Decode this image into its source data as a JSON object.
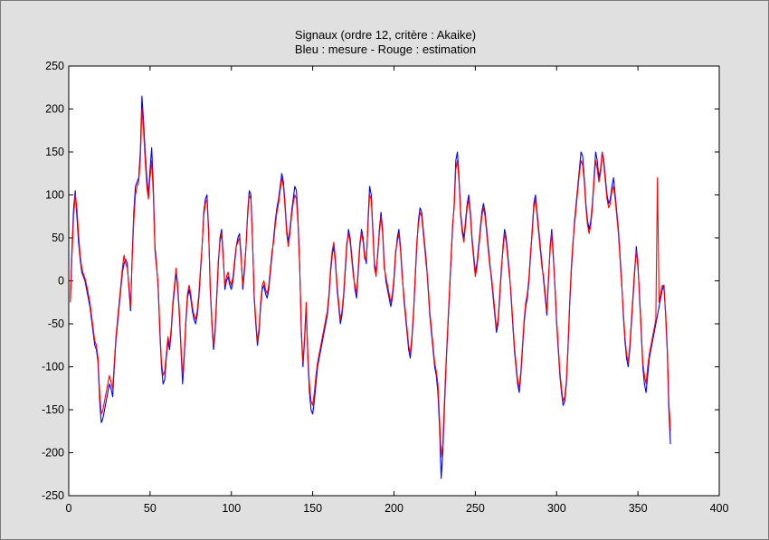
{
  "window": {
    "background": "#e0e0e0"
  },
  "chart_data": {
    "type": "line",
    "title": "Signaux (ordre 12, critère : Akaike)",
    "subtitle": "Bleu : mesure - Rouge : estimation",
    "xlabel": "",
    "ylabel": "",
    "xlim": [
      0,
      400
    ],
    "ylim": [
      -250,
      250
    ],
    "xticks": [
      0,
      50,
      100,
      150,
      200,
      250,
      300,
      350,
      400
    ],
    "yticks": [
      250,
      200,
      150,
      100,
      50,
      0,
      -50,
      -100,
      -150,
      -200,
      -250
    ],
    "grid": false,
    "background": "#ffffff",
    "series": [
      {
        "color": "#0000ff",
        "x_start": 1,
        "x_step": 1,
        "values": [
          -20,
          40,
          85,
          105,
          75,
          45,
          25,
          10,
          5,
          0,
          -10,
          -20,
          -30,
          -45,
          -60,
          -75,
          -80,
          -95,
          -140,
          -165,
          -160,
          -150,
          -140,
          -130,
          -120,
          -125,
          -135,
          -100,
          -70,
          -50,
          -30,
          -10,
          10,
          20,
          25,
          20,
          -10,
          -35,
          30,
          80,
          110,
          115,
          120,
          150,
          215,
          185,
          150,
          120,
          100,
          130,
          155,
          110,
          40,
          20,
          -10,
          -60,
          -100,
          -120,
          -115,
          -90,
          -70,
          -80,
          -60,
          -30,
          -10,
          10,
          -10,
          -40,
          -80,
          -120,
          -90,
          -50,
          -20,
          -10,
          -20,
          -35,
          -45,
          -50,
          -40,
          -20,
          10,
          40,
          80,
          95,
          100,
          60,
          -10,
          -50,
          -80,
          -60,
          -20,
          20,
          50,
          60,
          30,
          -10,
          0,
          5,
          -5,
          -10,
          0,
          20,
          40,
          50,
          55,
          30,
          -10,
          10,
          40,
          80,
          105,
          100,
          50,
          -20,
          -50,
          -75,
          -60,
          -30,
          -10,
          -5,
          -15,
          -20,
          -10,
          10,
          30,
          50,
          70,
          85,
          95,
          110,
          125,
          115,
          90,
          60,
          45,
          60,
          80,
          95,
          110,
          105,
          70,
          20,
          -60,
          -100,
          -70,
          -30,
          -90,
          -130,
          -150,
          -155,
          -140,
          -120,
          -100,
          -90,
          -80,
          -70,
          -60,
          -50,
          -40,
          -20,
          10,
          30,
          40,
          20,
          -10,
          -30,
          -50,
          -40,
          -20,
          10,
          40,
          60,
          50,
          30,
          10,
          -10,
          -20,
          10,
          40,
          60,
          50,
          30,
          20,
          70,
          110,
          100,
          60,
          20,
          10,
          30,
          60,
          80,
          60,
          20,
          0,
          -10,
          -20,
          -30,
          -20,
          0,
          30,
          50,
          60,
          40,
          10,
          -20,
          -40,
          -60,
          -80,
          -90,
          -70,
          -40,
          0,
          40,
          70,
          85,
          80,
          60,
          40,
          20,
          -10,
          -40,
          -60,
          -80,
          -100,
          -110,
          -130,
          -170,
          -230,
          -200,
          -150,
          -100,
          -60,
          -20,
          20,
          60,
          90,
          140,
          150,
          120,
          80,
          60,
          50,
          70,
          90,
          100,
          80,
          50,
          30,
          10,
          20,
          40,
          60,
          80,
          90,
          80,
          60,
          40,
          20,
          0,
          -20,
          -40,
          -60,
          -50,
          -20,
          10,
          40,
          60,
          50,
          30,
          10,
          -20,
          -50,
          -80,
          -100,
          -120,
          -130,
          -110,
          -80,
          -50,
          -30,
          -20,
          0,
          30,
          60,
          90,
          100,
          80,
          60,
          40,
          20,
          0,
          -20,
          -40,
          0,
          40,
          60,
          30,
          -10,
          -50,
          -80,
          -110,
          -130,
          -145,
          -140,
          -120,
          -80,
          -30,
          10,
          40,
          70,
          90,
          110,
          130,
          150,
          145,
          120,
          90,
          70,
          60,
          70,
          90,
          120,
          150,
          140,
          120,
          130,
          150,
          140,
          120,
          100,
          90,
          95,
          110,
          120,
          100,
          80,
          60,
          30,
          0,
          -40,
          -70,
          -90,
          -100,
          -80,
          -50,
          -20,
          10,
          40,
          20,
          -20,
          -60,
          -100,
          -120,
          -130,
          -110,
          -90,
          -80,
          -70,
          -60,
          -50,
          -40,
          -30,
          -20,
          -10,
          -5,
          -40,
          -80,
          -150,
          -190
        ]
      },
      {
        "color": "#ff0000",
        "x_start": 1,
        "x_step": 1,
        "values": [
          -25,
          30,
          75,
          100,
          85,
          55,
          30,
          15,
          8,
          3,
          -5,
          -15,
          -25,
          -40,
          -55,
          -70,
          -75,
          -90,
          -130,
          -155,
          -150,
          -140,
          -130,
          -120,
          -110,
          -118,
          -125,
          -95,
          -65,
          -45,
          -25,
          -5,
          15,
          30,
          20,
          15,
          -5,
          -30,
          25,
          70,
          100,
          110,
          115,
          140,
          200,
          175,
          140,
          110,
          95,
          120,
          140,
          100,
          35,
          15,
          -5,
          -55,
          -95,
          -110,
          -105,
          -85,
          -65,
          -75,
          -55,
          -25,
          -5,
          15,
          -5,
          -35,
          -75,
          -110,
          -85,
          -45,
          -15,
          -5,
          -15,
          -30,
          -40,
          -45,
          -35,
          -15,
          15,
          40,
          75,
          90,
          95,
          55,
          -5,
          -45,
          -75,
          -55,
          -15,
          25,
          45,
          55,
          25,
          -5,
          5,
          10,
          0,
          -5,
          5,
          25,
          40,
          45,
          50,
          25,
          -5,
          15,
          40,
          75,
          100,
          95,
          45,
          -15,
          -45,
          -70,
          -55,
          -25,
          -5,
          0,
          -10,
          -15,
          -5,
          15,
          35,
          45,
          65,
          80,
          90,
          105,
          120,
          110,
          85,
          55,
          40,
          55,
          75,
          90,
          100,
          95,
          65,
          15,
          -55,
          -95,
          -65,
          -25,
          -85,
          -120,
          -140,
          -145,
          -130,
          -110,
          -95,
          -85,
          -75,
          -65,
          -55,
          -45,
          -35,
          -15,
          15,
          35,
          45,
          25,
          -5,
          -25,
          -45,
          -35,
          -15,
          15,
          45,
          55,
          45,
          25,
          5,
          -5,
          -15,
          15,
          45,
          55,
          45,
          25,
          25,
          65,
          100,
          95,
          55,
          15,
          5,
          35,
          55,
          75,
          55,
          15,
          5,
          -5,
          -15,
          -25,
          -15,
          5,
          35,
          45,
          55,
          35,
          5,
          -15,
          -35,
          -55,
          -75,
          -85,
          -65,
          -35,
          5,
          45,
          65,
          80,
          75,
          55,
          35,
          15,
          -5,
          -35,
          -55,
          -75,
          -95,
          -105,
          -120,
          -160,
          -205,
          -190,
          -140,
          -95,
          -55,
          -15,
          25,
          65,
          85,
          130,
          140,
          115,
          75,
          55,
          45,
          65,
          85,
          95,
          75,
          45,
          25,
          5,
          15,
          35,
          55,
          75,
          85,
          75,
          55,
          35,
          15,
          5,
          -15,
          -35,
          -55,
          -45,
          -15,
          15,
          35,
          55,
          45,
          25,
          5,
          -15,
          -45,
          -75,
          -95,
          -115,
          -125,
          -105,
          -75,
          -45,
          -25,
          -15,
          5,
          35,
          55,
          85,
          95,
          75,
          55,
          35,
          15,
          5,
          -15,
          -35,
          5,
          35,
          55,
          25,
          -5,
          -45,
          -75,
          -105,
          -125,
          -140,
          -135,
          -115,
          -75,
          -25,
          15,
          45,
          65,
          85,
          105,
          125,
          140,
          135,
          115,
          85,
          65,
          55,
          65,
          85,
          115,
          140,
          130,
          115,
          125,
          150,
          135,
          115,
          95,
          85,
          90,
          105,
          110,
          95,
          75,
          55,
          25,
          -5,
          -35,
          -65,
          -85,
          -95,
          -75,
          -45,
          -15,
          15,
          35,
          15,
          -15,
          -55,
          -95,
          -110,
          -120,
          -100,
          -85,
          -75,
          -65,
          -55,
          -45,
          120,
          -25,
          -15,
          -5,
          -10,
          -35,
          -75,
          -140,
          -175
        ]
      }
    ]
  }
}
